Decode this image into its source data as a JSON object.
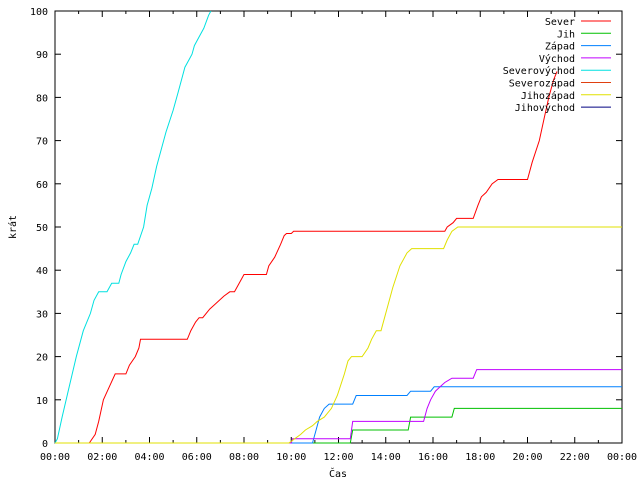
{
  "chart_data": {
    "type": "line",
    "title": "",
    "xlabel": "Čas",
    "ylabel": "krát",
    "xlim": [
      0,
      24
    ],
    "ylim": [
      0,
      100
    ],
    "grid": false,
    "legend_position": "top-right",
    "x_tick_labels": [
      "00:00",
      "02:00",
      "04:00",
      "06:00",
      "08:00",
      "10:00",
      "12:00",
      "14:00",
      "16:00",
      "18:00",
      "20:00",
      "22:00",
      "00:00"
    ],
    "y_tick_labels": [
      "0",
      "10",
      "20",
      "30",
      "40",
      "50",
      "60",
      "70",
      "80",
      "90",
      "100"
    ],
    "series": [
      {
        "name": "Sever",
        "color": "#ff0000",
        "x": [
          0,
          1.45,
          1.7,
          1.85,
          2.05,
          2.3,
          2.55,
          3.0,
          3.15,
          3.4,
          3.55,
          3.62,
          5.6,
          5.75,
          5.95,
          6.1,
          6.25,
          6.55,
          6.75,
          7.15,
          7.4,
          7.6,
          8.0,
          8.1,
          8.95,
          9.05,
          9.3,
          9.55,
          9.7,
          9.8,
          10.0,
          10.1,
          16.5,
          16.6,
          16.85,
          17.0,
          17.7,
          17.9,
          18.05,
          18.25,
          18.5,
          18.75,
          20.0,
          20.2,
          20.5,
          20.7,
          20.9,
          21.1,
          21.25
        ],
        "y": [
          0,
          0,
          2,
          5,
          10,
          13,
          16,
          16,
          18,
          20,
          22,
          24,
          24,
          26,
          28,
          29,
          29,
          31,
          32,
          34,
          35,
          35,
          39,
          39,
          39,
          41,
          43,
          46,
          48,
          48.5,
          48.5,
          49,
          49,
          50,
          51,
          52,
          52,
          55,
          57,
          58,
          60,
          61,
          61,
          65,
          70,
          75,
          80,
          84,
          86
        ]
      },
      {
        "name": "Jih",
        "color": "#00c000",
        "x": [
          0,
          12.5,
          12.6,
          14.95,
          15.05,
          16.8,
          16.9,
          24
        ],
        "y": [
          0,
          0,
          3,
          3,
          6,
          6,
          8,
          8
        ]
      },
      {
        "name": "Západ",
        "color": "#0080ff",
        "x": [
          0,
          10.9,
          11.05,
          11.2,
          11.4,
          11.6,
          11.8,
          12.0,
          12.6,
          12.75,
          14.9,
          15.05,
          15.9,
          16.05,
          24
        ],
        "y": [
          0,
          0,
          3,
          6,
          8,
          9,
          9,
          9,
          9,
          11,
          11,
          12,
          12,
          13,
          13
        ]
      },
      {
        "name": "Východ",
        "color": "#c000ff",
        "x": [
          0,
          10.0,
          10.05,
          12.5,
          12.6,
          15.6,
          15.75,
          15.9,
          16.1,
          16.3,
          16.5,
          16.8,
          17.0,
          17.7,
          17.85,
          24
        ],
        "y": [
          0,
          0,
          1,
          1,
          5,
          5,
          8,
          10,
          12,
          13,
          14,
          15,
          15,
          15,
          17,
          17
        ]
      },
      {
        "name": "Severovýchod",
        "color": "#00e0e0",
        "x": [
          0,
          0.1,
          0.3,
          0.6,
          0.9,
          1.2,
          1.5,
          1.65,
          1.85,
          2.0,
          2.2,
          2.4,
          2.7,
          2.8,
          3.0,
          3.2,
          3.35,
          3.5,
          3.75,
          3.9,
          4.1,
          4.3,
          4.5,
          4.7,
          5.0,
          5.2,
          5.4,
          5.5,
          5.7,
          5.8,
          5.9,
          6.1,
          6.3,
          6.5,
          6.6
        ],
        "y": [
          0,
          1,
          6,
          13,
          20,
          26,
          30,
          33,
          35,
          35,
          35,
          37,
          37,
          39,
          42,
          44,
          46,
          46,
          50,
          55,
          59,
          64,
          68,
          72,
          77,
          81,
          85,
          87,
          89,
          90,
          92,
          94,
          96,
          99,
          100
        ]
      },
      {
        "name": "Severozápad",
        "color": "#e04010",
        "x": [],
        "y": []
      },
      {
        "name": "Jihozápad",
        "color": "#e0e000",
        "x": [
          0,
          9.9,
          10.15,
          10.4,
          10.6,
          10.9,
          11.1,
          11.4,
          11.7,
          11.95,
          12.25,
          12.4,
          12.55,
          13.0,
          13.25,
          13.4,
          13.6,
          13.8,
          14.05,
          14.3,
          14.6,
          14.9,
          15.1,
          15.3,
          16.45,
          16.6,
          16.8,
          17.05,
          24
        ],
        "y": [
          0,
          0,
          1,
          2,
          3,
          4,
          5,
          6,
          8,
          11,
          16,
          19,
          20,
          20,
          22,
          24,
          26,
          26,
          31,
          36,
          41,
          44,
          45,
          45,
          45,
          47,
          49,
          50,
          50
        ]
      },
      {
        "name": "Jihovýchod",
        "color": "#000080",
        "x": [],
        "y": []
      }
    ]
  }
}
